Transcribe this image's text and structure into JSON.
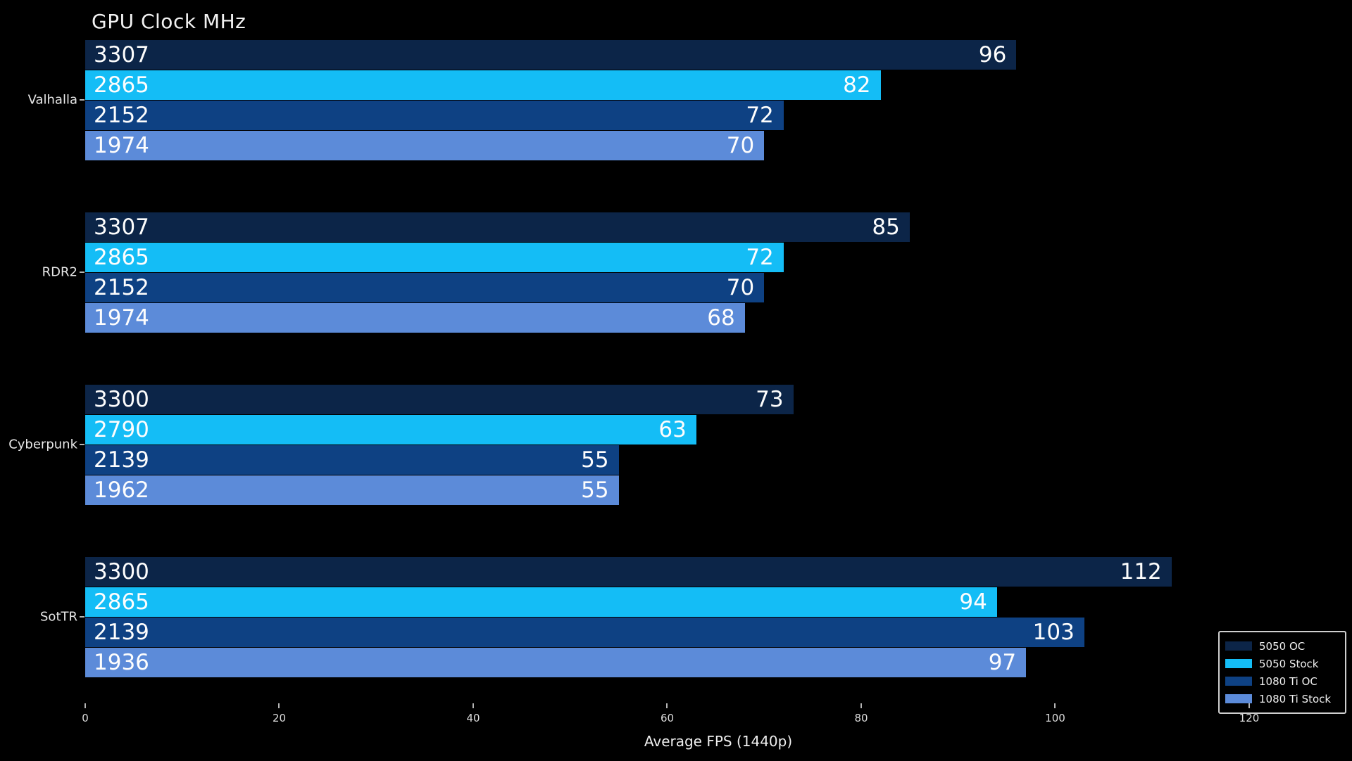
{
  "chart_data": {
    "type": "bar",
    "orientation": "horizontal",
    "title": "GPU Clock MHz",
    "xlabel": "Average FPS (1440p)",
    "xticks": [
      0,
      20,
      40,
      60,
      80,
      100,
      120
    ],
    "xlim": [
      0,
      130.6
    ],
    "grid": false,
    "background_color": "#000000",
    "categories": [
      "Valhalla",
      "RDR2",
      "Cyberpunk",
      "SotTR"
    ],
    "series": [
      {
        "name": "5050 OC",
        "color": "#0c2548",
        "values": [
          96,
          85,
          73,
          112
        ],
        "bar_labels_clock_mhz": [
          3307,
          3307,
          3300,
          3300
        ]
      },
      {
        "name": "5050 Stock",
        "color": "#14bdf6",
        "values": [
          82,
          72,
          63,
          94
        ],
        "bar_labels_clock_mhz": [
          2865,
          2865,
          2790,
          2865
        ]
      },
      {
        "name": "1080 Ti OC",
        "color": "#0e4183",
        "values": [
          72,
          70,
          55,
          103
        ],
        "bar_labels_clock_mhz": [
          2152,
          2152,
          2139,
          2139
        ]
      },
      {
        "name": "1080 Ti Stock",
        "color": "#5c8bd9",
        "values": [
          70,
          68,
          55,
          97
        ],
        "bar_labels_clock_mhz": [
          1974,
          1974,
          1962,
          1936
        ]
      }
    ],
    "legend": {
      "position": "lower right",
      "entries": [
        "5050 OC",
        "5050 Stock",
        "1080 Ti OC",
        "1080 Ti Stock"
      ]
    }
  }
}
